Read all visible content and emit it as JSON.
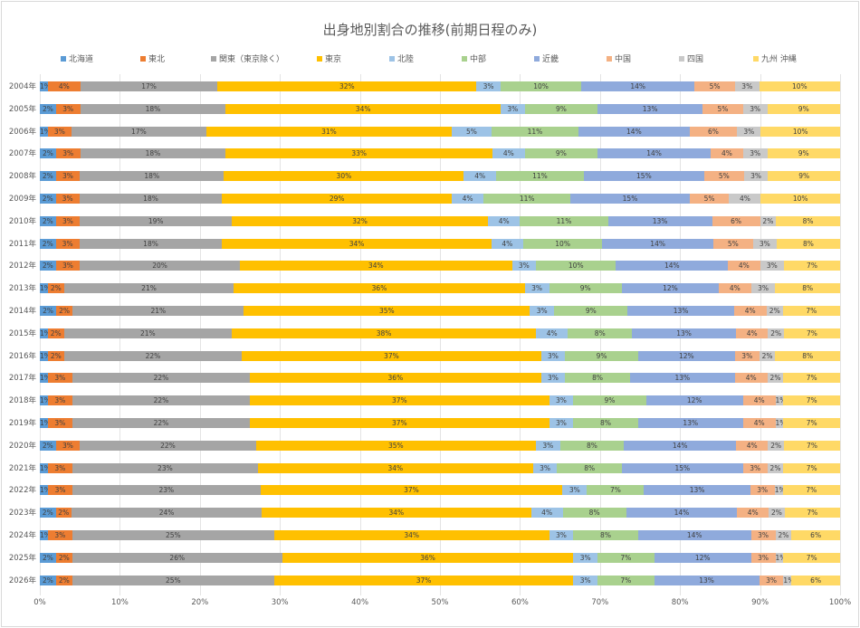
{
  "chart_data": {
    "type": "bar",
    "orientation": "horizontal",
    "stacked": "percent",
    "title": "出身地別割合の推移(前期日程のみ)",
    "legend_position": "top",
    "xlim": [
      0,
      100
    ],
    "x_ticks": [
      "0%",
      "10%",
      "20%",
      "30%",
      "40%",
      "50%",
      "60%",
      "70%",
      "80%",
      "90%",
      "100%"
    ],
    "categories": [
      "2004年",
      "2005年",
      "2006年",
      "2007年",
      "2008年",
      "2009年",
      "2010年",
      "2011年",
      "2012年",
      "2013年",
      "2014年",
      "2015年",
      "2016年",
      "2017年",
      "2018年",
      "2019年",
      "2020年",
      "2021年",
      "2022年",
      "2023年",
      "2024年",
      "2025年",
      "2026年"
    ],
    "series": [
      {
        "name": "北海道",
        "color": "#5B9BD5",
        "values": [
          1,
          2,
          1,
          2,
          2,
          2,
          2,
          2,
          2,
          1,
          2,
          1,
          1,
          1,
          1,
          1,
          2,
          1,
          1,
          2,
          1,
          2,
          2
        ]
      },
      {
        "name": "東北",
        "color": "#ED7D31",
        "values": [
          4,
          3,
          3,
          3,
          3,
          3,
          3,
          3,
          3,
          2,
          2,
          2,
          2,
          3,
          3,
          3,
          3,
          3,
          3,
          2,
          3,
          2,
          2
        ]
      },
      {
        "name": "関東（東京除く）",
        "color": "#A5A5A5",
        "values": [
          17,
          18,
          17,
          18,
          18,
          18,
          19,
          18,
          20,
          21,
          21,
          21,
          22,
          22,
          22,
          22,
          22,
          23,
          23,
          24,
          25,
          26,
          25
        ]
      },
      {
        "name": "東京",
        "color": "#FFC000",
        "values": [
          32,
          34,
          31,
          33,
          30,
          29,
          32,
          34,
          34,
          36,
          35,
          38,
          37,
          36,
          37,
          37,
          35,
          34,
          37,
          34,
          34,
          36,
          37
        ]
      },
      {
        "name": "北陸",
        "color": "#9DC3E6",
        "values": [
          3,
          3,
          5,
          4,
          4,
          4,
          4,
          4,
          3,
          3,
          3,
          4,
          3,
          3,
          3,
          3,
          3,
          3,
          3,
          4,
          3,
          3,
          3
        ]
      },
      {
        "name": "中部",
        "color": "#A9D18E",
        "values": [
          10,
          9,
          11,
          9,
          11,
          11,
          11,
          10,
          10,
          9,
          9,
          8,
          9,
          8,
          9,
          8,
          8,
          8,
          7,
          8,
          8,
          7,
          7
        ]
      },
      {
        "name": "近畿",
        "color": "#8FAADC",
        "values": [
          14,
          13,
          14,
          14,
          15,
          15,
          13,
          14,
          14,
          12,
          13,
          13,
          12,
          13,
          12,
          13,
          14,
          15,
          13,
          14,
          14,
          12,
          13
        ]
      },
      {
        "name": "中国",
        "color": "#F4B183",
        "values": [
          5,
          5,
          6,
          4,
          5,
          5,
          6,
          5,
          4,
          4,
          4,
          4,
          3,
          4,
          4,
          4,
          4,
          3,
          3,
          4,
          3,
          3,
          3
        ]
      },
      {
        "name": "四国",
        "color": "#C9C9C9",
        "values": [
          3,
          3,
          3,
          3,
          3,
          4,
          2,
          3,
          3,
          3,
          2,
          2,
          2,
          2,
          1,
          1,
          2,
          2,
          1,
          2,
          2,
          1,
          1
        ]
      },
      {
        "name": "九州 沖縄",
        "color": "#FFD966",
        "values": [
          10,
          9,
          10,
          9,
          9,
          10,
          8,
          8,
          7,
          8,
          7,
          7,
          8,
          7,
          7,
          7,
          7,
          7,
          7,
          7,
          6,
          7,
          6
        ]
      }
    ]
  }
}
